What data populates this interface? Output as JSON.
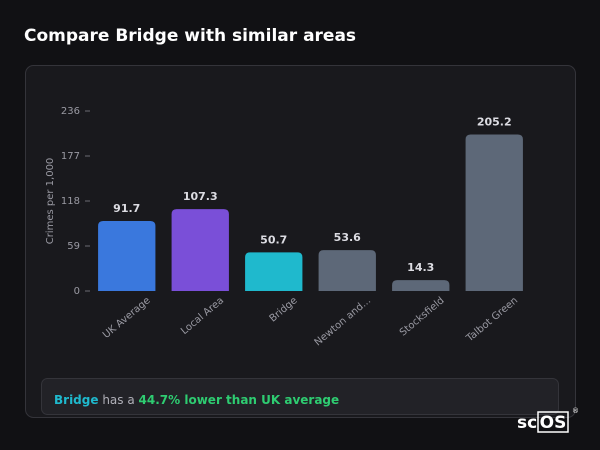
{
  "title": "Compare Bridge with similar areas",
  "chart_data": {
    "type": "bar",
    "y_label": "Crimes per 1,000",
    "categories": [
      "UK Average",
      "Local Area",
      "Bridge",
      "Newton and...",
      "Stocksfield",
      "Talbot Green"
    ],
    "values": [
      91.7,
      107.3,
      50.7,
      53.6,
      14.3,
      205.2
    ],
    "colors": [
      "#3a78dd",
      "#7a4fd8",
      "#1fb9cd",
      "#5d6878",
      "#5d6878",
      "#5d6878"
    ],
    "ylim": [
      0,
      236
    ],
    "yticks": [
      0,
      59,
      118,
      177,
      236
    ],
    "grid": false
  },
  "summary": {
    "area": "Bridge",
    "text": "has a",
    "comparison": "44.7% lower than UK average"
  },
  "logo": {
    "prefix": "sc",
    "boxed": "OS",
    "mark": "®"
  }
}
